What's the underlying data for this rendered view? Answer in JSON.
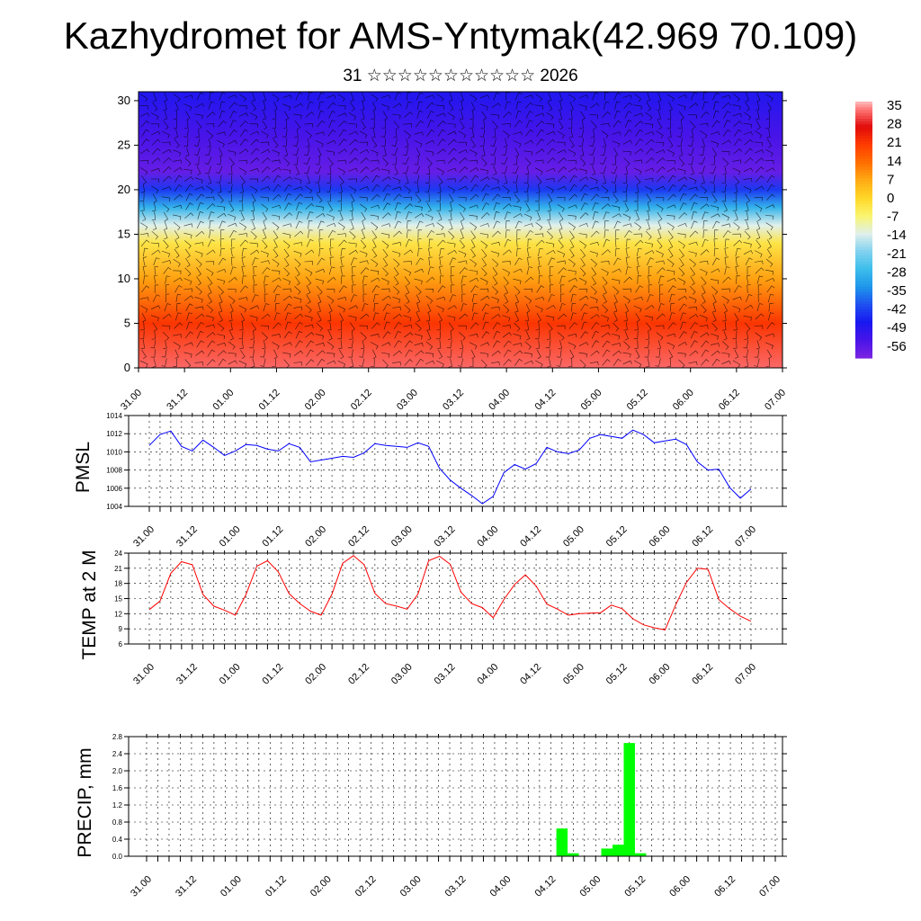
{
  "title": "Kazhydromet for AMS-Yntymak(42.969 70.109)",
  "subtitle": "31 ☆☆☆☆☆☆☆☆☆☆☆ 2026",
  "chart_data": [
    {
      "type": "heatmap",
      "name": "temperature-height cross section with wind barbs",
      "xlabel": "",
      "ylabel": "",
      "x_ticks": [
        "31.00",
        "31.12",
        "01.00",
        "01.12",
        "02.00",
        "02.12",
        "03.00",
        "03.12",
        "04.00",
        "04.12",
        "05.00",
        "05.12",
        "06.00",
        "06.12",
        "07.00"
      ],
      "y_ticks": [
        0,
        5,
        10,
        15,
        20,
        25,
        30
      ],
      "ylim": [
        0,
        31
      ],
      "colorbar_labels": [
        "35",
        "28",
        "21",
        "14",
        "7",
        "0",
        "-7",
        "-14",
        "-21",
        "-28",
        "-35",
        "-42",
        "-49",
        "-56"
      ],
      "colorbar_range": [
        -63,
        38
      ],
      "vertical_temperature_profile": [
        {
          "level": 0,
          "value": 34
        },
        {
          "level": 5,
          "value": 22
        },
        {
          "level": 10,
          "value": 8
        },
        {
          "level": 14,
          "value": -3
        },
        {
          "level": 16,
          "value": -14
        },
        {
          "level": 18,
          "value": -30
        },
        {
          "level": 20,
          "value": -45
        },
        {
          "level": 22,
          "value": -60
        },
        {
          "level": 26,
          "value": -56
        },
        {
          "level": 31,
          "value": -50
        }
      ]
    },
    {
      "type": "line",
      "name": "PMSL",
      "ylabel": "PMSL",
      "x_ticks": [
        "31.00",
        "31.12",
        "01.00",
        "01.12",
        "02.00",
        "02.12",
        "03.00",
        "03.12",
        "04.00",
        "04.12",
        "05.00",
        "05.12",
        "06.00",
        "06.12",
        "07.00"
      ],
      "y_ticks": [
        "1004",
        "1006",
        "1008",
        "1010",
        "1012",
        "1014"
      ],
      "ylim": [
        1004,
        1014
      ],
      "color": "#0000ff",
      "values": [
        1010.7,
        1011.9,
        1012.3,
        1010.6,
        1010.1,
        1011.3,
        1010.5,
        1009.6,
        1010.1,
        1010.8,
        1010.7,
        1010.3,
        1010.1,
        1010.9,
        1010.5,
        1008.9,
        1009.1,
        1009.3,
        1009.5,
        1009.4,
        1009.9,
        1010.9,
        1010.7,
        1010.6,
        1010.5,
        1011.0,
        1010.6,
        1008.2,
        1006.9,
        1006.0,
        1005.2,
        1004.3,
        1005.1,
        1007.7,
        1008.6,
        1008.1,
        1008.7,
        1010.5,
        1010.0,
        1009.8,
        1010.2,
        1011.5,
        1011.9,
        1011.7,
        1011.5,
        1012.4,
        1011.9,
        1011.0,
        1011.2,
        1011.4,
        1010.8,
        1008.9,
        1008.0,
        1008.1,
        1006.1,
        1004.9,
        1005.9
      ]
    },
    {
      "type": "line",
      "name": "TEMP at 2 M",
      "ylabel": "TEMP at 2 M",
      "x_ticks": [
        "31.00",
        "31.12",
        "01.00",
        "01.12",
        "02.00",
        "02.12",
        "03.00",
        "03.12",
        "04.00",
        "04.12",
        "05.00",
        "05.12",
        "06.00",
        "06.12",
        "07.00"
      ],
      "y_ticks": [
        "6",
        "9",
        "12",
        "15",
        "18",
        "21",
        "24"
      ],
      "ylim": [
        6,
        24
      ],
      "color": "#ff0000",
      "values": [
        12.8,
        14.5,
        20.0,
        22.3,
        21.7,
        15.8,
        13.5,
        12.7,
        11.7,
        15.8,
        21.4,
        22.5,
        20.3,
        16.0,
        14.0,
        12.5,
        11.7,
        15.9,
        22.0,
        23.5,
        21.7,
        16.0,
        14.0,
        13.5,
        12.9,
        15.9,
        22.5,
        23.4,
        21.8,
        16.3,
        14.0,
        13.2,
        11.2,
        14.8,
        17.8,
        19.7,
        17.5,
        13.9,
        12.9,
        11.7,
        12.0,
        12.1,
        12.2,
        13.7,
        13.0,
        11.0,
        9.8,
        9.2,
        8.8,
        13.8,
        18.2,
        21.0,
        20.8,
        14.8,
        13.0,
        11.5,
        10.5
      ]
    },
    {
      "type": "bar",
      "name": "PRECIP, mm",
      "ylabel": "PRECIP, mm",
      "x_ticks": [
        "31.00",
        "31.12",
        "01.00",
        "01.12",
        "02.00",
        "02.12",
        "03.00",
        "03.12",
        "04.00",
        "04.12",
        "05.00",
        "05.12",
        "06.00",
        "06.12",
        "07.00"
      ],
      "y_ticks": [
        "0.0",
        "0.4",
        "0.8",
        "1.2",
        "1.6",
        "2.0",
        "2.4",
        "2.8"
      ],
      "ylim": [
        0,
        2.8
      ],
      "color": "#00ff00",
      "values": [
        0,
        0,
        0,
        0,
        0,
        0,
        0,
        0,
        0,
        0,
        0,
        0,
        0,
        0,
        0,
        0,
        0,
        0,
        0,
        0,
        0,
        0,
        0,
        0,
        0,
        0,
        0,
        0,
        0,
        0,
        0,
        0,
        0,
        0,
        0,
        0,
        0,
        0.65,
        0.07,
        0,
        0,
        0.18,
        0.27,
        2.65,
        0.07,
        0,
        0,
        0,
        0,
        0,
        0,
        0,
        0,
        0,
        0,
        0
      ]
    }
  ]
}
